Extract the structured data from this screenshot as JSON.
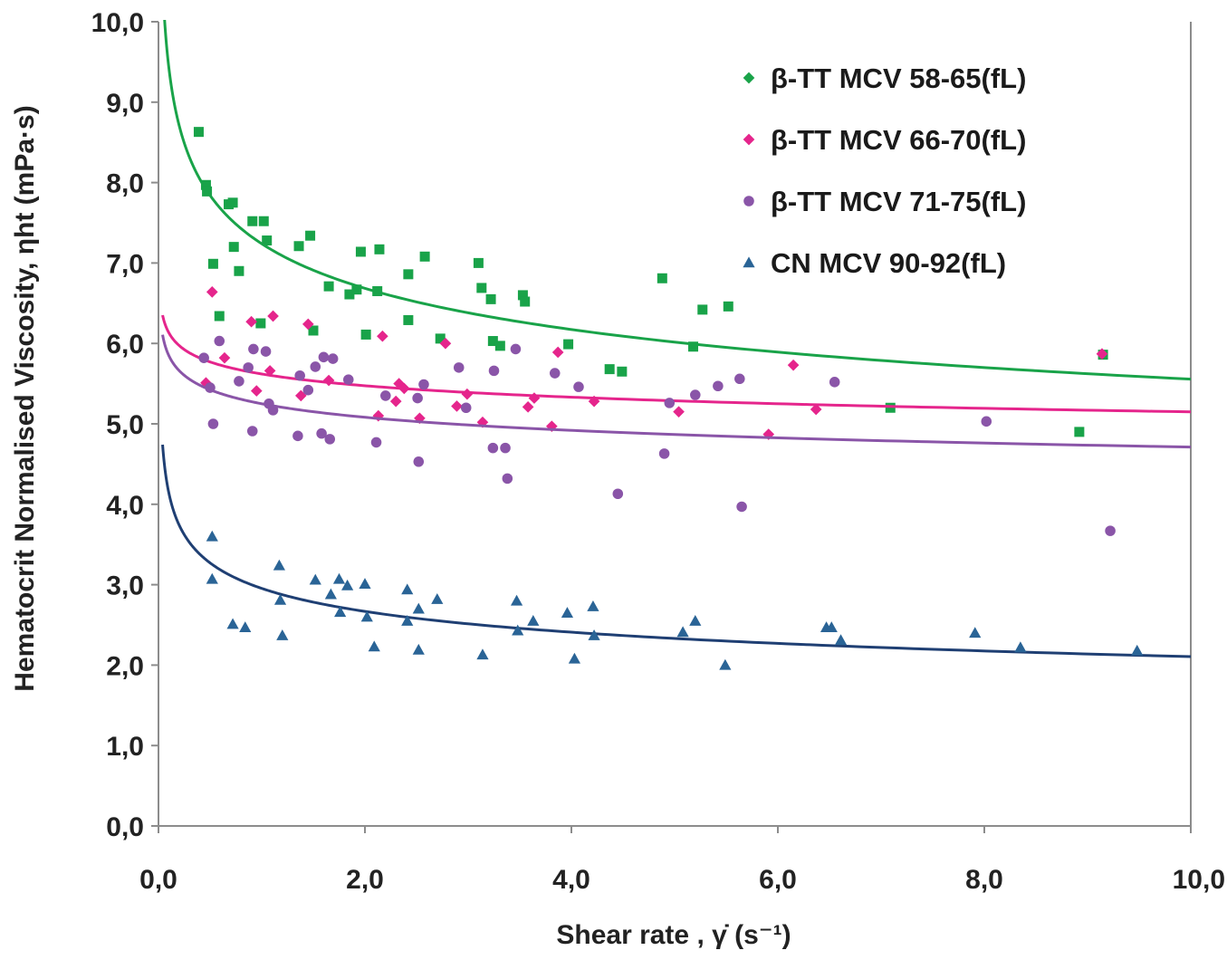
{
  "chart_data": {
    "type": "scatter",
    "title": "",
    "xlabel": "Shear rate , γ̇  (s⁻¹)",
    "ylabel": "Hematocrit Normalised Viscosity, ηht (mPa·s)",
    "xlim": [
      0,
      10
    ],
    "ylim": [
      0,
      10
    ],
    "x_ticks": [
      "0,0",
      "2,0",
      "4,0",
      "6,0",
      "8,0",
      "10,0"
    ],
    "y_ticks": [
      "0,0",
      "1,0",
      "2,0",
      "3,0",
      "4,0",
      "5,0",
      "6,0",
      "7,0",
      "8,0",
      "9,0",
      "10,0"
    ],
    "grid": false,
    "legend_position": "top-right",
    "series": [
      {
        "name": "β-TT MCV 58-65(fL)",
        "color": "#19a349",
        "legend_marker": "diamond",
        "marker": "square",
        "trend": {
          "a": 7.24,
          "b": -0.115
        },
        "points": [
          [
            0.39,
            8.63
          ],
          [
            0.46,
            7.97
          ],
          [
            0.47,
            7.89
          ],
          [
            0.53,
            6.99
          ],
          [
            0.59,
            6.34
          ],
          [
            0.68,
            7.73
          ],
          [
            0.72,
            7.75
          ],
          [
            0.73,
            7.2
          ],
          [
            0.78,
            6.9
          ],
          [
            0.91,
            7.52
          ],
          [
            0.99,
            6.25
          ],
          [
            1.02,
            7.52
          ],
          [
            1.05,
            7.28
          ],
          [
            1.36,
            7.21
          ],
          [
            1.47,
            7.34
          ],
          [
            1.5,
            6.16
          ],
          [
            1.65,
            6.71
          ],
          [
            1.85,
            6.61
          ],
          [
            1.92,
            6.67
          ],
          [
            1.96,
            7.14
          ],
          [
            2.01,
            6.11
          ],
          [
            2.12,
            6.65
          ],
          [
            2.14,
            7.17
          ],
          [
            2.42,
            6.86
          ],
          [
            2.42,
            6.29
          ],
          [
            2.58,
            7.08
          ],
          [
            2.73,
            6.06
          ],
          [
            3.1,
            7.0
          ],
          [
            3.13,
            6.69
          ],
          [
            3.22,
            6.55
          ],
          [
            3.24,
            6.03
          ],
          [
            3.31,
            5.97
          ],
          [
            3.53,
            6.6
          ],
          [
            3.55,
            6.52
          ],
          [
            3.97,
            5.99
          ],
          [
            4.37,
            5.68
          ],
          [
            4.49,
            5.65
          ],
          [
            4.88,
            6.81
          ],
          [
            5.18,
            5.96
          ],
          [
            5.27,
            6.42
          ],
          [
            5.52,
            6.46
          ],
          [
            7.09,
            5.2
          ],
          [
            8.92,
            4.9
          ],
          [
            9.15,
            5.86
          ]
        ]
      },
      {
        "name": "β-TT MCV 66-70(fL)",
        "color": "#e5258c",
        "legend_marker": "diamond",
        "marker": "diamond",
        "trend": {
          "a": 5.62,
          "b": -0.038
        },
        "points": [
          [
            0.46,
            5.51
          ],
          [
            0.52,
            6.64
          ],
          [
            0.64,
            5.82
          ],
          [
            0.9,
            6.27
          ],
          [
            0.95,
            5.41
          ],
          [
            1.08,
            5.66
          ],
          [
            1.11,
            6.34
          ],
          [
            1.38,
            5.35
          ],
          [
            1.45,
            6.24
          ],
          [
            1.65,
            5.54
          ],
          [
            2.13,
            5.1
          ],
          [
            2.17,
            6.09
          ],
          [
            2.3,
            5.28
          ],
          [
            2.33,
            5.5
          ],
          [
            2.38,
            5.44
          ],
          [
            2.53,
            5.07
          ],
          [
            2.78,
            6.0
          ],
          [
            2.89,
            5.22
          ],
          [
            2.99,
            5.37
          ],
          [
            3.14,
            5.02
          ],
          [
            3.58,
            5.21
          ],
          [
            3.64,
            5.32
          ],
          [
            3.81,
            4.97
          ],
          [
            3.87,
            5.89
          ],
          [
            4.22,
            5.28
          ],
          [
            5.04,
            5.15
          ],
          [
            5.91,
            4.87
          ],
          [
            6.15,
            5.73
          ],
          [
            6.37,
            5.18
          ],
          [
            9.14,
            5.87
          ]
        ]
      },
      {
        "name": "β-TT MCV 71-75(fL)",
        "color": "#8a55a8",
        "legend_marker": "circle",
        "marker": "circle",
        "trend": {
          "a": 5.25,
          "b": -0.047
        },
        "points": [
          [
            0.44,
            5.82
          ],
          [
            0.5,
            5.45
          ],
          [
            0.53,
            5.0
          ],
          [
            0.59,
            6.03
          ],
          [
            0.78,
            5.53
          ],
          [
            0.87,
            5.7
          ],
          [
            0.91,
            4.91
          ],
          [
            0.92,
            5.93
          ],
          [
            1.04,
            5.9
          ],
          [
            1.07,
            5.25
          ],
          [
            1.11,
            5.17
          ],
          [
            1.35,
            4.85
          ],
          [
            1.37,
            5.6
          ],
          [
            1.45,
            5.42
          ],
          [
            1.52,
            5.71
          ],
          [
            1.58,
            4.88
          ],
          [
            1.6,
            5.83
          ],
          [
            1.66,
            4.81
          ],
          [
            1.69,
            5.81
          ],
          [
            1.84,
            5.55
          ],
          [
            2.11,
            4.77
          ],
          [
            2.2,
            5.35
          ],
          [
            2.51,
            5.32
          ],
          [
            2.52,
            4.53
          ],
          [
            2.57,
            5.49
          ],
          [
            2.91,
            5.7
          ],
          [
            2.98,
            5.2
          ],
          [
            3.24,
            4.7
          ],
          [
            3.25,
            5.66
          ],
          [
            3.36,
            4.7
          ],
          [
            3.38,
            4.32
          ],
          [
            3.46,
            5.93
          ],
          [
            3.84,
            5.63
          ],
          [
            4.07,
            5.46
          ],
          [
            4.45,
            4.13
          ],
          [
            4.9,
            4.63
          ],
          [
            4.95,
            5.26
          ],
          [
            5.2,
            5.36
          ],
          [
            5.42,
            5.47
          ],
          [
            5.63,
            5.56
          ],
          [
            5.65,
            3.97
          ],
          [
            6.55,
            5.52
          ],
          [
            8.02,
            5.03
          ],
          [
            9.22,
            3.67
          ]
        ]
      },
      {
        "name": "CN MCV 90-92(fL)",
        "color": "#2a6496",
        "legend_marker": "triangle",
        "marker": "triangle",
        "line_color": "#1f3f73",
        "trend": {
          "a": 2.954,
          "b": -0.147
        },
        "points": [
          [
            0.52,
            3.6
          ],
          [
            0.52,
            3.07
          ],
          [
            0.72,
            2.51
          ],
          [
            0.84,
            2.47
          ],
          [
            1.17,
            3.24
          ],
          [
            1.18,
            2.81
          ],
          [
            1.2,
            2.37
          ],
          [
            1.52,
            3.06
          ],
          [
            1.67,
            2.88
          ],
          [
            1.75,
            3.07
          ],
          [
            1.76,
            2.66
          ],
          [
            1.83,
            2.99
          ],
          [
            2.0,
            3.01
          ],
          [
            2.02,
            2.6
          ],
          [
            2.09,
            2.23
          ],
          [
            2.41,
            2.94
          ],
          [
            2.41,
            2.55
          ],
          [
            2.52,
            2.7
          ],
          [
            2.52,
            2.19
          ],
          [
            2.7,
            2.82
          ],
          [
            3.14,
            2.13
          ],
          [
            3.47,
            2.8
          ],
          [
            3.48,
            2.43
          ],
          [
            3.63,
            2.55
          ],
          [
            3.96,
            2.65
          ],
          [
            4.03,
            2.08
          ],
          [
            4.21,
            2.73
          ],
          [
            4.22,
            2.37
          ],
          [
            5.08,
            2.41
          ],
          [
            5.2,
            2.55
          ],
          [
            5.49,
            2.0
          ],
          [
            6.47,
            2.47
          ],
          [
            6.52,
            2.47
          ],
          [
            6.61,
            2.31
          ],
          [
            7.91,
            2.4
          ],
          [
            8.35,
            2.22
          ],
          [
            9.48,
            2.18
          ]
        ]
      }
    ]
  }
}
